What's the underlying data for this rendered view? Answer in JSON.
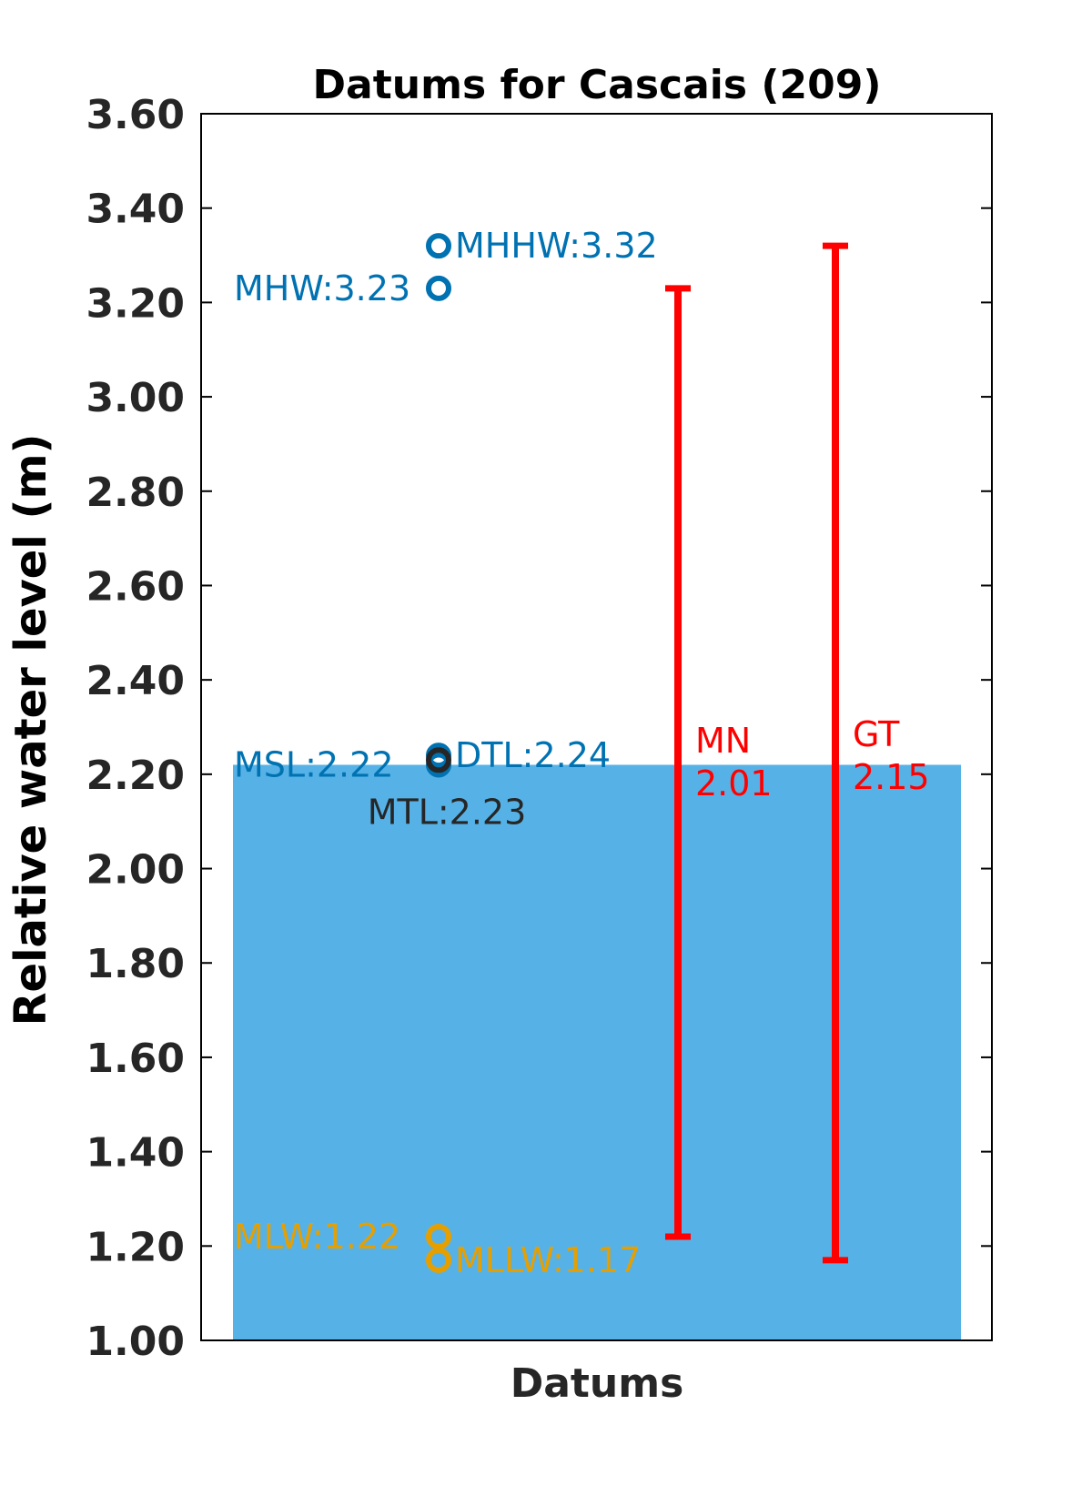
{
  "chart_data": {
    "type": "bar",
    "title": "Datums for Cascais (209)",
    "xlabel": "Datums",
    "ylabel": "Relative water level (m)",
    "ylim": [
      1.0,
      3.6
    ],
    "yticks": [
      "1.00",
      "1.20",
      "1.40",
      "1.60",
      "1.80",
      "2.00",
      "2.20",
      "2.40",
      "2.60",
      "2.80",
      "3.00",
      "3.20",
      "3.40",
      "3.60"
    ],
    "grid": false,
    "bar": {
      "value": 2.22,
      "color": "#56B2E6"
    },
    "datums": [
      {
        "label": "MHHW:3.32",
        "value": 3.32,
        "color": "#0072B2",
        "label_side": "right"
      },
      {
        "label": "MHW:3.23",
        "value": 3.23,
        "color": "#0072B2",
        "label_side": "left"
      },
      {
        "label": "DTL:2.24",
        "value": 2.24,
        "color": "#0072B2",
        "label_side": "right"
      },
      {
        "label": "MSL:2.22",
        "value": 2.22,
        "color": "#0072B2",
        "label_side": "left"
      },
      {
        "label": "MTL:2.23",
        "value": 2.23,
        "color": "#262626",
        "label_side": "below"
      },
      {
        "label": "MLW:1.22",
        "value": 1.22,
        "color": "#E69F00",
        "label_side": "left"
      },
      {
        "label": "MLLW:1.17",
        "value": 1.17,
        "color": "#E69F00",
        "label_side": "right"
      }
    ],
    "ranges": [
      {
        "name": "MN",
        "value_label": "2.01",
        "low": 1.22,
        "high": 3.23,
        "color": "#FF0000"
      },
      {
        "name": "GT",
        "value_label": "2.15",
        "low": 1.17,
        "high": 3.32,
        "color": "#FF0000"
      }
    ]
  }
}
